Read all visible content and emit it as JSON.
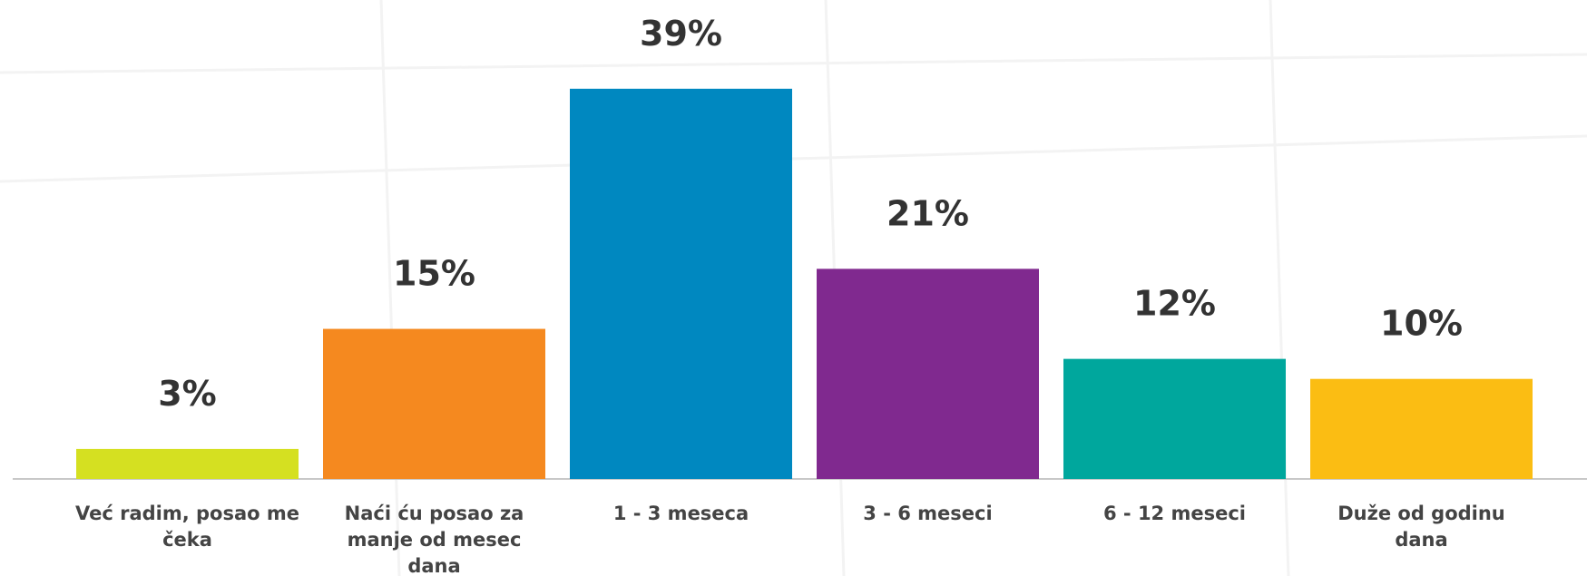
{
  "chart_data": {
    "type": "bar",
    "categories": [
      "Već radim, posao me čeka",
      "Naći ću posao za manje od mesec dana",
      "1 - 3 meseca",
      "3 - 6 meseci",
      "6 - 12 meseci",
      "Duže od godinu dana"
    ],
    "values": [
      3,
      15,
      39,
      21,
      12,
      10
    ],
    "value_labels": [
      "3%",
      "15%",
      "39%",
      "21%",
      "12%",
      "10%"
    ],
    "colors": [
      "#d5e021",
      "#f5891f",
      "#0088c0",
      "#80298f",
      "#00a79d",
      "#fbbd13"
    ]
  }
}
